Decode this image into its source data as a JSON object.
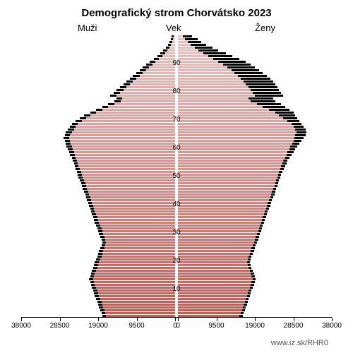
{
  "title": "Demografický strom Chorvátsko 2023",
  "labels": {
    "men": "Muži",
    "age": "Vek",
    "women": "Ženy"
  },
  "source": "www.iz.sk/RHR0",
  "chart": {
    "type": "population-pyramid",
    "x_max": 38000,
    "x_ticks_left": [
      38000,
      28500,
      19000,
      9500,
      0
    ],
    "x_ticks_right": [
      0,
      9500,
      19000,
      28500,
      38000
    ],
    "y_ticks": [
      10,
      20,
      30,
      40,
      50,
      60,
      70,
      80,
      90
    ],
    "age_max": 100,
    "colors": {
      "top_color": "#e8c4c4",
      "bottom_color": "#c85850",
      "back_color": "#000000",
      "background": "#ffffff"
    },
    "ages": [
      {
        "age": 99,
        "m": 300,
        "m2": 800,
        "f": 1200,
        "f2": 3500
      },
      {
        "age": 98,
        "m": 500,
        "m2": 1100,
        "f": 1800,
        "f2": 4800
      },
      {
        "age": 97,
        "m": 700,
        "m2": 1400,
        "f": 2400,
        "f2": 5800
      },
      {
        "age": 96,
        "m": 1000,
        "m2": 1800,
        "f": 3200,
        "f2": 7000
      },
      {
        "age": 95,
        "m": 1400,
        "m2": 2300,
        "f": 4100,
        "f2": 8500
      },
      {
        "age": 94,
        "m": 1900,
        "m2": 2900,
        "f": 5000,
        "f2": 10000
      },
      {
        "age": 93,
        "m": 2500,
        "m2": 3600,
        "f": 6200,
        "f2": 11800
      },
      {
        "age": 92,
        "m": 3200,
        "m2": 4400,
        "f": 7500,
        "f2": 13500
      },
      {
        "age": 91,
        "m": 4000,
        "m2": 5300,
        "f": 8800,
        "f2": 15200
      },
      {
        "age": 90,
        "m": 4800,
        "m2": 6200,
        "f": 10000,
        "f2": 16800
      },
      {
        "age": 89,
        "m": 5600,
        "m2": 7100,
        "f": 11200,
        "f2": 18000
      },
      {
        "age": 88,
        "m": 6400,
        "m2": 8000,
        "f": 12200,
        "f2": 19000
      },
      {
        "age": 87,
        "m": 7200,
        "m2": 8800,
        "f": 13200,
        "f2": 20000
      },
      {
        "age": 86,
        "m": 8000,
        "m2": 9600,
        "f": 14000,
        "f2": 21000
      },
      {
        "age": 85,
        "m": 8800,
        "m2": 10400,
        "f": 14800,
        "f2": 22000
      },
      {
        "age": 84,
        "m": 9600,
        "m2": 11200,
        "f": 15500,
        "f2": 22800
      },
      {
        "age": 83,
        "m": 10400,
        "m2": 12000,
        "f": 16200,
        "f2": 23500
      },
      {
        "age": 82,
        "m": 11200,
        "m2": 12800,
        "f": 16800,
        "f2": 24000
      },
      {
        "age": 81,
        "m": 12000,
        "m2": 13600,
        "f": 17400,
        "f2": 24500
      },
      {
        "age": 80,
        "m": 12800,
        "m2": 14400,
        "f": 18000,
        "f2": 25000
      },
      {
        "age": 79,
        "m": 13600,
        "m2": 15200,
        "f": 18500,
        "f2": 25500
      },
      {
        "age": 78,
        "m": 14400,
        "m2": 16000,
        "f": 19000,
        "f2": 26000
      },
      {
        "age": 77,
        "m": 13000,
        "m2": 14500,
        "f": 17500,
        "f2": 23500
      },
      {
        "age": 76,
        "m": 13500,
        "m2": 15000,
        "f": 18000,
        "f2": 24000
      },
      {
        "age": 75,
        "m": 15000,
        "m2": 16500,
        "f": 19500,
        "f2": 25500
      },
      {
        "age": 74,
        "m": 16500,
        "m2": 18000,
        "f": 21000,
        "f2": 26500
      },
      {
        "age": 73,
        "m": 18000,
        "m2": 19500,
        "f": 22500,
        "f2": 27500
      },
      {
        "age": 72,
        "m": 19500,
        "m2": 21000,
        "f": 24000,
        "f2": 28500
      },
      {
        "age": 71,
        "m": 21000,
        "m2": 22500,
        "f": 25000,
        "f2": 29000
      },
      {
        "age": 70,
        "m": 22000,
        "m2": 23500,
        "f": 26000,
        "f2": 29500
      },
      {
        "age": 69,
        "m": 23000,
        "m2": 24500,
        "f": 27000,
        "f2": 30000
      },
      {
        "age": 68,
        "m": 24000,
        "m2": 25500,
        "f": 28000,
        "f2": 30500
      },
      {
        "age": 67,
        "m": 24500,
        "m2": 26000,
        "f": 28500,
        "f2": 31000
      },
      {
        "age": 66,
        "m": 25000,
        "m2": 26500,
        "f": 29000,
        "f2": 31500
      },
      {
        "age": 65,
        "m": 25500,
        "m2": 27000,
        "f": 29200,
        "f2": 31800
      },
      {
        "age": 64,
        "m": 26000,
        "m2": 27200,
        "f": 29000,
        "f2": 31500
      },
      {
        "age": 63,
        "m": 26200,
        "m2": 27500,
        "f": 28800,
        "f2": 31000
      },
      {
        "age": 62,
        "m": 26000,
        "m2": 27200,
        "f": 28500,
        "f2": 30500
      },
      {
        "age": 61,
        "m": 25800,
        "m2": 27000,
        "f": 28200,
        "f2": 30000
      },
      {
        "age": 60,
        "m": 25500,
        "m2": 26800,
        "f": 27800,
        "f2": 29500
      },
      {
        "age": 59,
        "m": 25200,
        "m2": 26500,
        "f": 27500,
        "f2": 29000
      },
      {
        "age": 58,
        "m": 25000,
        "m2": 26200,
        "f": 27000,
        "f2": 28500
      },
      {
        "age": 57,
        "m": 24800,
        "m2": 26000,
        "f": 26800,
        "f2": 28000
      },
      {
        "age": 56,
        "m": 24500,
        "m2": 25500,
        "f": 26500,
        "f2": 27500
      },
      {
        "age": 55,
        "m": 24200,
        "m2": 25200,
        "f": 26000,
        "f2": 27000
      },
      {
        "age": 54,
        "m": 24000,
        "m2": 25000,
        "f": 25800,
        "f2": 26800
      },
      {
        "age": 53,
        "m": 23800,
        "m2": 24800,
        "f": 25500,
        "f2": 26500
      },
      {
        "age": 52,
        "m": 23500,
        "m2": 24500,
        "f": 25200,
        "f2": 26200
      },
      {
        "age": 51,
        "m": 23200,
        "m2": 24200,
        "f": 25000,
        "f2": 25800
      },
      {
        "age": 50,
        "m": 23000,
        "m2": 24000,
        "f": 24800,
        "f2": 25500
      },
      {
        "age": 49,
        "m": 22800,
        "m2": 23800,
        "f": 24500,
        "f2": 25200
      },
      {
        "age": 48,
        "m": 22500,
        "m2": 23500,
        "f": 24200,
        "f2": 25000
      },
      {
        "age": 47,
        "m": 22200,
        "m2": 23200,
        "f": 24000,
        "f2": 24800
      },
      {
        "age": 46,
        "m": 22000,
        "m2": 23000,
        "f": 23800,
        "f2": 24500
      },
      {
        "age": 45,
        "m": 21800,
        "m2": 22800,
        "f": 23500,
        "f2": 24200
      },
      {
        "age": 44,
        "m": 21500,
        "m2": 22500,
        "f": 23200,
        "f2": 24000
      },
      {
        "age": 43,
        "m": 21200,
        "m2": 22200,
        "f": 23000,
        "f2": 23800
      },
      {
        "age": 42,
        "m": 21000,
        "m2": 22000,
        "f": 22800,
        "f2": 23500
      },
      {
        "age": 41,
        "m": 20800,
        "m2": 21800,
        "f": 22500,
        "f2": 23200
      },
      {
        "age": 40,
        "m": 20500,
        "m2": 21500,
        "f": 22200,
        "f2": 23000
      },
      {
        "age": 39,
        "m": 20200,
        "m2": 21200,
        "f": 22000,
        "f2": 22800
      },
      {
        "age": 38,
        "m": 20000,
        "m2": 21000,
        "f": 21800,
        "f2": 22500
      },
      {
        "age": 37,
        "m": 19800,
        "m2": 20800,
        "f": 21500,
        "f2": 22200
      },
      {
        "age": 36,
        "m": 19500,
        "m2": 20500,
        "f": 21200,
        "f2": 22000
      },
      {
        "age": 35,
        "m": 19200,
        "m2": 20200,
        "f": 21000,
        "f2": 21800
      },
      {
        "age": 34,
        "m": 19000,
        "m2": 20000,
        "f": 20800,
        "f2": 21500
      },
      {
        "age": 33,
        "m": 18800,
        "m2": 19800,
        "f": 20500,
        "f2": 21200
      },
      {
        "age": 32,
        "m": 18500,
        "m2": 19500,
        "f": 20200,
        "f2": 21000
      },
      {
        "age": 31,
        "m": 18200,
        "m2": 19200,
        "f": 20000,
        "f2": 20800
      },
      {
        "age": 30,
        "m": 18000,
        "m2": 19000,
        "f": 19800,
        "f2": 20500
      },
      {
        "age": 29,
        "m": 17800,
        "m2": 18800,
        "f": 19500,
        "f2": 20200
      },
      {
        "age": 28,
        "m": 17500,
        "m2": 18500,
        "f": 19200,
        "f2": 20000
      },
      {
        "age": 27,
        "m": 17200,
        "m2": 18200,
        "f": 19000,
        "f2": 19800
      },
      {
        "age": 26,
        "m": 17000,
        "m2": 18000,
        "f": 18800,
        "f2": 19500
      },
      {
        "age": 25,
        "m": 17200,
        "m2": 18200,
        "f": 18500,
        "f2": 19200
      },
      {
        "age": 24,
        "m": 17500,
        "m2": 18500,
        "f": 18200,
        "f2": 19000
      },
      {
        "age": 23,
        "m": 17800,
        "m2": 18800,
        "f": 18000,
        "f2": 18800
      },
      {
        "age": 22,
        "m": 18000,
        "m2": 19000,
        "f": 17800,
        "f2": 18500
      },
      {
        "age": 21,
        "m": 18200,
        "m2": 19200,
        "f": 17500,
        "f2": 18200
      },
      {
        "age": 20,
        "m": 18500,
        "m2": 19500,
        "f": 17200,
        "f2": 18000
      },
      {
        "age": 19,
        "m": 18800,
        "m2": 19800,
        "f": 17000,
        "f2": 17800
      },
      {
        "age": 18,
        "m": 19000,
        "m2": 20000,
        "f": 17200,
        "f2": 18000
      },
      {
        "age": 17,
        "m": 19200,
        "m2": 20200,
        "f": 17500,
        "f2": 18200
      },
      {
        "age": 16,
        "m": 19500,
        "m2": 20500,
        "f": 17800,
        "f2": 18500
      },
      {
        "age": 15,
        "m": 19800,
        "m2": 20800,
        "f": 18000,
        "f2": 18800
      },
      {
        "age": 14,
        "m": 20000,
        "m2": 21000,
        "f": 18200,
        "f2": 19000
      },
      {
        "age": 13,
        "m": 20200,
        "m2": 21200,
        "f": 18500,
        "f2": 19200
      },
      {
        "age": 12,
        "m": 20000,
        "m2": 21000,
        "f": 18200,
        "f2": 19000
      },
      {
        "age": 11,
        "m": 19800,
        "m2": 20800,
        "f": 18000,
        "f2": 18800
      },
      {
        "age": 10,
        "m": 19500,
        "m2": 20500,
        "f": 17800,
        "f2": 18500
      },
      {
        "age": 9,
        "m": 19200,
        "m2": 20200,
        "f": 17500,
        "f2": 18200
      },
      {
        "age": 8,
        "m": 19000,
        "m2": 20000,
        "f": 17200,
        "f2": 18000
      },
      {
        "age": 7,
        "m": 18800,
        "m2": 19800,
        "f": 17000,
        "f2": 17800
      },
      {
        "age": 6,
        "m": 18500,
        "m2": 19500,
        "f": 16800,
        "f2": 17500
      },
      {
        "age": 5,
        "m": 18200,
        "m2": 19200,
        "f": 16500,
        "f2": 17200
      },
      {
        "age": 4,
        "m": 18000,
        "m2": 19000,
        "f": 16200,
        "f2": 17000
      },
      {
        "age": 3,
        "m": 17800,
        "m2": 18800,
        "f": 16000,
        "f2": 16800
      },
      {
        "age": 2,
        "m": 17500,
        "m2": 18500,
        "f": 15800,
        "f2": 16500
      },
      {
        "age": 1,
        "m": 17200,
        "m2": 18200,
        "f": 15500,
        "f2": 16200
      },
      {
        "age": 0,
        "m": 17000,
        "m2": 18000,
        "f": 15200,
        "f2": 16000
      }
    ]
  }
}
